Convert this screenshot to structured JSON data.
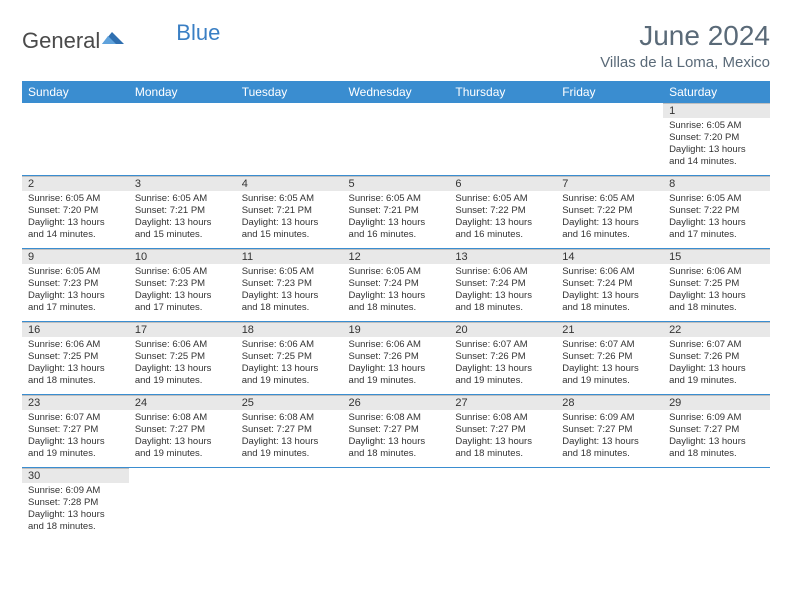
{
  "logo": {
    "general": "General",
    "blue": "Blue"
  },
  "title": "June 2024",
  "location": "Villas de la Loma, Mexico",
  "colors": {
    "header_bg": "#3a8dd0",
    "header_fg": "#ffffff",
    "daynum_bg": "#e8e8e8",
    "rule": "#3a8dd0",
    "title_fg": "#5a6a78"
  },
  "day_headers": [
    "Sunday",
    "Monday",
    "Tuesday",
    "Wednesday",
    "Thursday",
    "Friday",
    "Saturday"
  ],
  "weeks": [
    [
      null,
      null,
      null,
      null,
      null,
      null,
      {
        "n": "1",
        "sunrise": "Sunrise: 6:05 AM",
        "sunset": "Sunset: 7:20 PM",
        "day1": "Daylight: 13 hours",
        "day2": "and 14 minutes."
      }
    ],
    [
      {
        "n": "2",
        "sunrise": "Sunrise: 6:05 AM",
        "sunset": "Sunset: 7:20 PM",
        "day1": "Daylight: 13 hours",
        "day2": "and 14 minutes."
      },
      {
        "n": "3",
        "sunrise": "Sunrise: 6:05 AM",
        "sunset": "Sunset: 7:21 PM",
        "day1": "Daylight: 13 hours",
        "day2": "and 15 minutes."
      },
      {
        "n": "4",
        "sunrise": "Sunrise: 6:05 AM",
        "sunset": "Sunset: 7:21 PM",
        "day1": "Daylight: 13 hours",
        "day2": "and 15 minutes."
      },
      {
        "n": "5",
        "sunrise": "Sunrise: 6:05 AM",
        "sunset": "Sunset: 7:21 PM",
        "day1": "Daylight: 13 hours",
        "day2": "and 16 minutes."
      },
      {
        "n": "6",
        "sunrise": "Sunrise: 6:05 AM",
        "sunset": "Sunset: 7:22 PM",
        "day1": "Daylight: 13 hours",
        "day2": "and 16 minutes."
      },
      {
        "n": "7",
        "sunrise": "Sunrise: 6:05 AM",
        "sunset": "Sunset: 7:22 PM",
        "day1": "Daylight: 13 hours",
        "day2": "and 16 minutes."
      },
      {
        "n": "8",
        "sunrise": "Sunrise: 6:05 AM",
        "sunset": "Sunset: 7:22 PM",
        "day1": "Daylight: 13 hours",
        "day2": "and 17 minutes."
      }
    ],
    [
      {
        "n": "9",
        "sunrise": "Sunrise: 6:05 AM",
        "sunset": "Sunset: 7:23 PM",
        "day1": "Daylight: 13 hours",
        "day2": "and 17 minutes."
      },
      {
        "n": "10",
        "sunrise": "Sunrise: 6:05 AM",
        "sunset": "Sunset: 7:23 PM",
        "day1": "Daylight: 13 hours",
        "day2": "and 17 minutes."
      },
      {
        "n": "11",
        "sunrise": "Sunrise: 6:05 AM",
        "sunset": "Sunset: 7:23 PM",
        "day1": "Daylight: 13 hours",
        "day2": "and 18 minutes."
      },
      {
        "n": "12",
        "sunrise": "Sunrise: 6:05 AM",
        "sunset": "Sunset: 7:24 PM",
        "day1": "Daylight: 13 hours",
        "day2": "and 18 minutes."
      },
      {
        "n": "13",
        "sunrise": "Sunrise: 6:06 AM",
        "sunset": "Sunset: 7:24 PM",
        "day1": "Daylight: 13 hours",
        "day2": "and 18 minutes."
      },
      {
        "n": "14",
        "sunrise": "Sunrise: 6:06 AM",
        "sunset": "Sunset: 7:24 PM",
        "day1": "Daylight: 13 hours",
        "day2": "and 18 minutes."
      },
      {
        "n": "15",
        "sunrise": "Sunrise: 6:06 AM",
        "sunset": "Sunset: 7:25 PM",
        "day1": "Daylight: 13 hours",
        "day2": "and 18 minutes."
      }
    ],
    [
      {
        "n": "16",
        "sunrise": "Sunrise: 6:06 AM",
        "sunset": "Sunset: 7:25 PM",
        "day1": "Daylight: 13 hours",
        "day2": "and 18 minutes."
      },
      {
        "n": "17",
        "sunrise": "Sunrise: 6:06 AM",
        "sunset": "Sunset: 7:25 PM",
        "day1": "Daylight: 13 hours",
        "day2": "and 19 minutes."
      },
      {
        "n": "18",
        "sunrise": "Sunrise: 6:06 AM",
        "sunset": "Sunset: 7:25 PM",
        "day1": "Daylight: 13 hours",
        "day2": "and 19 minutes."
      },
      {
        "n": "19",
        "sunrise": "Sunrise: 6:06 AM",
        "sunset": "Sunset: 7:26 PM",
        "day1": "Daylight: 13 hours",
        "day2": "and 19 minutes."
      },
      {
        "n": "20",
        "sunrise": "Sunrise: 6:07 AM",
        "sunset": "Sunset: 7:26 PM",
        "day1": "Daylight: 13 hours",
        "day2": "and 19 minutes."
      },
      {
        "n": "21",
        "sunrise": "Sunrise: 6:07 AM",
        "sunset": "Sunset: 7:26 PM",
        "day1": "Daylight: 13 hours",
        "day2": "and 19 minutes."
      },
      {
        "n": "22",
        "sunrise": "Sunrise: 6:07 AM",
        "sunset": "Sunset: 7:26 PM",
        "day1": "Daylight: 13 hours",
        "day2": "and 19 minutes."
      }
    ],
    [
      {
        "n": "23",
        "sunrise": "Sunrise: 6:07 AM",
        "sunset": "Sunset: 7:27 PM",
        "day1": "Daylight: 13 hours",
        "day2": "and 19 minutes."
      },
      {
        "n": "24",
        "sunrise": "Sunrise: 6:08 AM",
        "sunset": "Sunset: 7:27 PM",
        "day1": "Daylight: 13 hours",
        "day2": "and 19 minutes."
      },
      {
        "n": "25",
        "sunrise": "Sunrise: 6:08 AM",
        "sunset": "Sunset: 7:27 PM",
        "day1": "Daylight: 13 hours",
        "day2": "and 19 minutes."
      },
      {
        "n": "26",
        "sunrise": "Sunrise: 6:08 AM",
        "sunset": "Sunset: 7:27 PM",
        "day1": "Daylight: 13 hours",
        "day2": "and 18 minutes."
      },
      {
        "n": "27",
        "sunrise": "Sunrise: 6:08 AM",
        "sunset": "Sunset: 7:27 PM",
        "day1": "Daylight: 13 hours",
        "day2": "and 18 minutes."
      },
      {
        "n": "28",
        "sunrise": "Sunrise: 6:09 AM",
        "sunset": "Sunset: 7:27 PM",
        "day1": "Daylight: 13 hours",
        "day2": "and 18 minutes."
      },
      {
        "n": "29",
        "sunrise": "Sunrise: 6:09 AM",
        "sunset": "Sunset: 7:27 PM",
        "day1": "Daylight: 13 hours",
        "day2": "and 18 minutes."
      }
    ],
    [
      {
        "n": "30",
        "sunrise": "Sunrise: 6:09 AM",
        "sunset": "Sunset: 7:28 PM",
        "day1": "Daylight: 13 hours",
        "day2": "and 18 minutes."
      },
      null,
      null,
      null,
      null,
      null,
      null
    ]
  ]
}
